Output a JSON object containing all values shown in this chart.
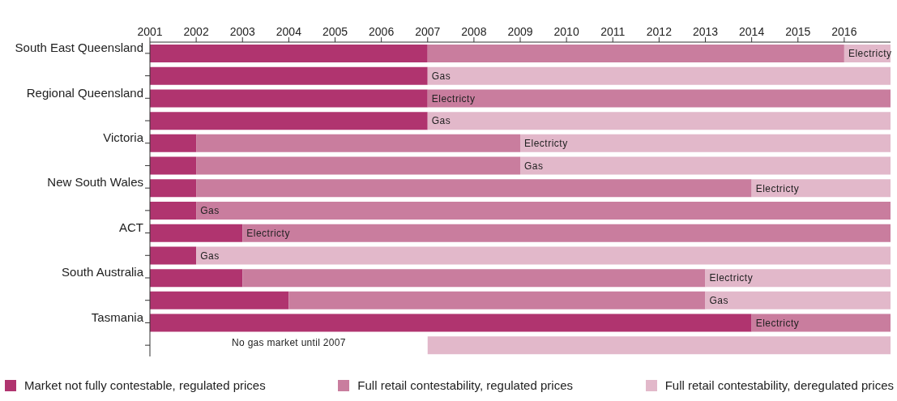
{
  "chart_data": {
    "type": "bar",
    "orientation": "horizontal",
    "categories": [
      "South East Queensland",
      null,
      "Regional Queensland",
      null,
      "Victoria",
      null,
      "New South Wales",
      null,
      "ACT",
      null,
      "South Australia",
      null,
      "Tasmania",
      null
    ],
    "series": [
      {
        "name": "Market not fully contestable, regulated prices",
        "color": "#b0346f",
        "base": [
          2001,
          2001,
          2001,
          2001,
          2001,
          2001,
          2001,
          2001,
          2001,
          2001,
          2001,
          2001,
          2001,
          null
        ],
        "values": [
          6,
          6,
          6,
          6,
          1,
          1,
          1,
          1,
          2,
          1,
          2,
          3,
          13,
          null
        ]
      },
      {
        "name": "Full retail contestability, regulated prices",
        "color": "#c97d9e",
        "base": [
          2007,
          null,
          2007,
          null,
          2002,
          2002,
          2002,
          2002,
          2003,
          null,
          2003,
          2004,
          2014,
          null
        ],
        "values": [
          9,
          null,
          10,
          null,
          7,
          7,
          12,
          15,
          14,
          null,
          10,
          9,
          3,
          null
        ],
        "value_labels": [
          null,
          null,
          "Electricty",
          null,
          null,
          null,
          null,
          "Gas",
          "Electricty",
          null,
          null,
          null,
          "Electricty",
          null
        ]
      },
      {
        "name": "Full retail contestability, deregulated prices",
        "color": "#e2b8ca",
        "base": [
          2016,
          2007,
          null,
          2007,
          2009,
          2009,
          2014,
          null,
          null,
          2002,
          2013,
          2013,
          null,
          2007
        ],
        "values": [
          1,
          10,
          null,
          10,
          8,
          8,
          3,
          null,
          null,
          15,
          4,
          4,
          null,
          10
        ],
        "value_labels": [
          "Electricty",
          "Gas",
          null,
          "Gas",
          "Electricty",
          "Gas",
          "Electricty",
          null,
          null,
          "Gas",
          "Electricty",
          "Gas",
          null,
          null
        ]
      }
    ],
    "xlim": [
      2001,
      2017
    ],
    "xticks": [
      2001,
      2002,
      2003,
      2004,
      2005,
      2006,
      2007,
      2008,
      2009,
      2010,
      2011,
      2012,
      2013,
      2014,
      2015,
      2016
    ],
    "annotations": [
      "No gas market until 2007"
    ],
    "grid": false,
    "legend": "bottom"
  }
}
